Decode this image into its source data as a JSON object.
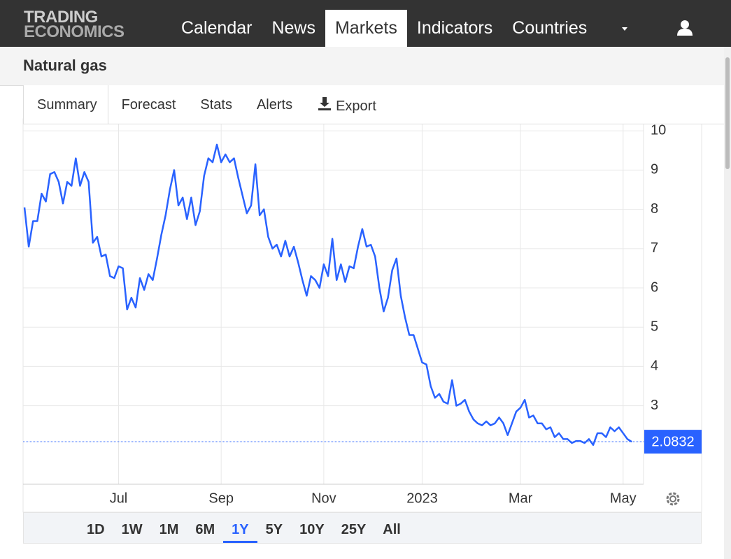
{
  "nav": {
    "logo": [
      "TRADING",
      "ECONOMICS"
    ],
    "items": [
      "Calendar",
      "News",
      "Markets",
      "Indicators",
      "Countries"
    ],
    "active": 2
  },
  "title": "Natural gas",
  "tabs": [
    "Summary",
    "Forecast",
    "Stats",
    "Alerts",
    "Export"
  ],
  "ranges": [
    "1D",
    "1W",
    "1M",
    "6M",
    "1Y",
    "5Y",
    "10Y",
    "25Y",
    "All"
  ],
  "active_range": 4,
  "chart_data": {
    "type": "line",
    "color": "#2962ff",
    "grid": true,
    "values": [
      8.05,
      7.05,
      7.7,
      7.7,
      8.4,
      8.2,
      8.9,
      8.95,
      8.7,
      8.15,
      8.7,
      8.6,
      9.3,
      8.6,
      8.95,
      8.7,
      7.15,
      7.3,
      6.8,
      6.85,
      6.3,
      6.25,
      6.55,
      6.5,
      5.45,
      5.75,
      5.5,
      6.25,
      5.95,
      6.35,
      6.2,
      6.75,
      7.35,
      7.85,
      8.5,
      9.0,
      8.1,
      8.3,
      7.75,
      8.3,
      7.6,
      7.95,
      8.85,
      9.3,
      9.2,
      9.65,
      9.2,
      9.4,
      9.2,
      9.3,
      8.8,
      8.35,
      7.9,
      8.1,
      9.15,
      7.85,
      8.0,
      7.3,
      7.0,
      7.1,
      6.8,
      7.2,
      6.8,
      7.05,
      6.65,
      6.2,
      5.8,
      6.3,
      6.2,
      6.0,
      6.6,
      6.3,
      7.25,
      6.2,
      6.6,
      6.15,
      6.55,
      6.5,
      7.05,
      7.5,
      7.05,
      7.1,
      6.8,
      6.0,
      5.4,
      5.75,
      6.45,
      6.75,
      5.8,
      5.25,
      4.8,
      4.8,
      4.45,
      4.1,
      4.05,
      3.5,
      3.2,
      3.3,
      3.1,
      3.05,
      3.65,
      3.0,
      3.05,
      3.15,
      2.85,
      2.65,
      2.55,
      2.5,
      2.6,
      2.5,
      2.55,
      2.7,
      2.55,
      2.25,
      2.55,
      2.85,
      2.95,
      3.15,
      2.7,
      2.75,
      2.55,
      2.55,
      2.4,
      2.45,
      2.2,
      2.3,
      2.15,
      2.15,
      2.05,
      2.1,
      2.1,
      2.05,
      2.15,
      2.0,
      2.3,
      2.3,
      2.2,
      2.45,
      2.35,
      2.45,
      2.3,
      2.15,
      2.0832
    ],
    "xlim": [
      0,
      142
    ],
    "xticks": [
      {
        "value": 22,
        "label": "Jul"
      },
      {
        "value": 46,
        "label": "Sep"
      },
      {
        "value": 70,
        "label": "Nov"
      },
      {
        "value": 93,
        "label": "2023"
      },
      {
        "value": 116,
        "label": "Mar"
      },
      {
        "value": 140,
        "label": "May"
      }
    ],
    "ylim": [
      1,
      10.2
    ],
    "yticks": [
      3,
      4,
      5,
      6,
      7,
      8,
      9,
      10
    ]
  }
}
